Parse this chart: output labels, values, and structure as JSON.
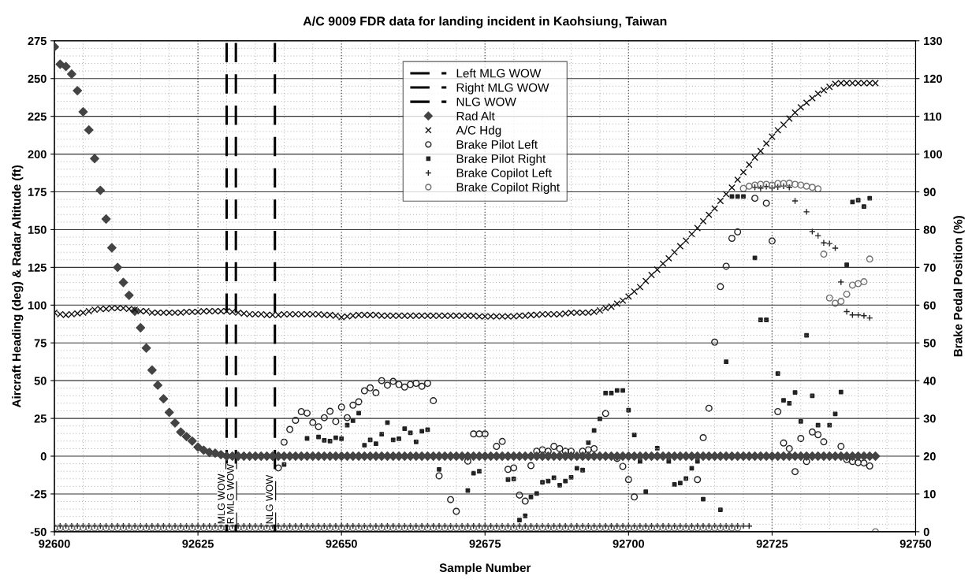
{
  "chart_data": {
    "type": "scatter",
    "title": "A/C 9009 FDR data for landing incident in Kaohsiung, Taiwan",
    "xlabel": "Sample Number",
    "ylabel": "Aircraft Heading (deg) & Radar Altitude (ft)",
    "y2label": "Brake Pedal Position (%)",
    "x": [
      92600,
      92601,
      92602,
      92603,
      92604,
      92605,
      92606,
      92607,
      92608,
      92609,
      92610,
      92611,
      92612,
      92613,
      92614,
      92615,
      92616,
      92617,
      92618,
      92619,
      92620,
      92621,
      92622,
      92623,
      92624,
      92625,
      92626,
      92627,
      92628,
      92629,
      92630,
      92631,
      92632,
      92633,
      92634,
      92635,
      92636,
      92637,
      92638,
      92639,
      92640,
      92641,
      92642,
      92643,
      92644,
      92645,
      92646,
      92647,
      92648,
      92649,
      92650,
      92651,
      92652,
      92653,
      92654,
      92655,
      92656,
      92657,
      92658,
      92659,
      92660,
      92661,
      92662,
      92663,
      92664,
      92665,
      92666,
      92667,
      92668,
      92669,
      92670,
      92671,
      92672,
      92673,
      92674,
      92675,
      92676,
      92677,
      92678,
      92679,
      92680,
      92681,
      92682,
      92683,
      92684,
      92685,
      92686,
      92687,
      92688,
      92689,
      92690,
      92691,
      92692,
      92693,
      92694,
      92695,
      92696,
      92697,
      92698,
      92699,
      92700,
      92701,
      92702,
      92703,
      92704,
      92705,
      92706,
      92707,
      92708,
      92709,
      92710,
      92711,
      92712,
      92713,
      92714,
      92715,
      92716,
      92717,
      92718,
      92719,
      92720,
      92721,
      92722,
      92723,
      92724,
      92725,
      92726,
      92727,
      92728,
      92729,
      92730,
      92731,
      92732,
      92733,
      92734,
      92735,
      92736,
      92737,
      92738,
      92739,
      92740,
      92741,
      92742,
      92743
    ],
    "xlim": [
      92600,
      92750
    ],
    "xticks": [
      92600,
      92625,
      92650,
      92675,
      92700,
      92725,
      92750
    ],
    "ylim": [
      -50,
      275
    ],
    "yticks": [
      -50,
      -25,
      0,
      25,
      50,
      75,
      100,
      125,
      150,
      175,
      200,
      225,
      250,
      275
    ],
    "y2lim": [
      0,
      130
    ],
    "y2ticks": [
      0,
      10,
      20,
      30,
      40,
      50,
      60,
      70,
      80,
      90,
      100,
      110,
      120,
      130
    ],
    "grid": true,
    "legend": "top",
    "annotations": [
      {
        "text": "MLG WOW",
        "x": 92630,
        "y": -45
      },
      {
        "text": "R MLG WOW",
        "x": 92631.6,
        "y": -45
      },
      {
        "text": "NLG WOW",
        "x": 92638.4,
        "y": -45
      }
    ],
    "series": [
      {
        "name": "Left MLG WOW",
        "type": "line",
        "color": "#000000",
        "line_style": "dashed",
        "marker": "none",
        "x": [
          92630,
          92630
        ],
        "values": [
          -50,
          275
        ]
      },
      {
        "name": "Right MLG WOW",
        "type": "line",
        "color": "#000000",
        "line_style": "dashed",
        "marker": "none",
        "x": [
          92631.6,
          92631.6
        ],
        "values": [
          -50,
          275
        ]
      },
      {
        "name": "NLG WOW",
        "type": "line",
        "color": "#000000",
        "line_style": "dashed",
        "marker": "none",
        "x": [
          92638.4,
          92638.4
        ],
        "values": [
          -50,
          275
        ]
      },
      {
        "name": "Rad Alt",
        "color": "#444444",
        "marker": "diamond",
        "values": [
          271,
          259.5,
          258,
          253,
          242,
          228,
          216,
          197,
          176,
          157,
          138,
          125,
          115,
          106.5,
          96,
          85,
          71.6,
          57,
          47,
          38,
          29,
          22,
          16,
          13,
          10,
          6,
          4,
          2.5,
          2,
          1,
          0,
          0,
          0,
          0,
          0,
          0,
          0,
          0,
          0,
          0,
          0,
          0,
          0,
          0,
          0,
          0,
          0,
          0,
          0,
          0,
          0,
          0,
          0,
          0,
          0,
          0,
          0,
          0,
          0,
          0,
          0,
          0,
          0,
          0,
          0,
          0,
          0,
          0,
          0,
          0,
          0,
          0,
          0,
          0,
          0,
          0,
          0,
          0,
          0,
          0,
          0,
          0,
          0,
          0,
          0,
          0,
          0,
          0,
          0,
          0,
          0,
          0,
          0,
          0,
          0,
          0,
          0,
          0,
          0,
          0,
          0,
          0,
          0,
          0,
          0,
          0,
          0,
          0,
          0,
          0,
          0,
          0,
          0,
          0,
          0,
          0,
          0,
          0,
          0,
          0,
          0,
          0,
          0,
          0,
          0,
          0,
          0,
          0,
          0,
          0,
          0,
          0,
          0,
          0,
          0,
          0,
          0,
          0,
          0,
          0,
          0,
          0,
          0,
          0
        ]
      },
      {
        "name": "A/C Hdg",
        "color": "#111111",
        "marker": "cross",
        "values": [
          95,
          94,
          93.5,
          94,
          94.5,
          95,
          96,
          97,
          97.5,
          97.5,
          98,
          98,
          98,
          97.5,
          97,
          96,
          96,
          95,
          95,
          95,
          95,
          95,
          95,
          95.5,
          95.5,
          95.5,
          96,
          96,
          96,
          96,
          96,
          95.5,
          95,
          94.5,
          94,
          94,
          94,
          93.5,
          93.5,
          93.5,
          94,
          94,
          94,
          94,
          94,
          94,
          94,
          93.5,
          93.5,
          93,
          92,
          92.5,
          93,
          93.5,
          93.5,
          93.5,
          93.5,
          93,
          93,
          93,
          93,
          93,
          93,
          93,
          93,
          93,
          93,
          93,
          93,
          93,
          93,
          93,
          93,
          93,
          92.5,
          92.5,
          92.5,
          92.5,
          92.5,
          92.5,
          92.5,
          93,
          93,
          93.5,
          93.5,
          94,
          94,
          94,
          94,
          94.5,
          95,
          95,
          95,
          95,
          95.5,
          96.5,
          98,
          99,
          101,
          103,
          105.7,
          109,
          112,
          116,
          120,
          123.5,
          127.5,
          131,
          135,
          139,
          142.7,
          147,
          151,
          155.5,
          159.8,
          164,
          169,
          173.5,
          177.8,
          183,
          188,
          193,
          197.7,
          202,
          207,
          211.5,
          215.8,
          219.5,
          223.5,
          227.5,
          231,
          234,
          237,
          240,
          242.3,
          244.5,
          246.5,
          247,
          247,
          247,
          247,
          247,
          247,
          247
        ]
      },
      {
        "name": "Brake Pilot Left",
        "axis": "y2",
        "color": "#222222",
        "marker": "circle",
        "x": [
          92639,
          92640,
          92641,
          92642,
          92643,
          92644,
          92645,
          92646,
          92647,
          92648,
          92649,
          92650,
          92651,
          92652,
          92653,
          92654,
          92655,
          92656,
          92657,
          92658,
          92659,
          92660,
          92661,
          92662,
          92663,
          92664,
          92665,
          92666,
          92667,
          92669,
          92670,
          92672,
          92673,
          92674,
          92675,
          92677,
          92678,
          92679,
          92680,
          92681,
          92682,
          92683,
          92684,
          92685,
          92686,
          92687,
          92688,
          92689,
          92690,
          92692,
          92693,
          92694,
          92696,
          92698,
          92699,
          92700,
          92701,
          92712,
          92713,
          92714,
          92715,
          92716,
          92717,
          92718,
          92719,
          92722,
          92724,
          92725,
          92726,
          92727,
          92728,
          92729,
          92730,
          92731,
          92732,
          92733,
          92734,
          92737,
          92738,
          92739,
          92740,
          92741,
          92742
        ],
        "values": [
          16.9,
          23.7,
          27.1,
          29.5,
          31.8,
          31.4,
          28.9,
          27.8,
          30.2,
          31.9,
          29.2,
          33,
          30.2,
          33.5,
          34.4,
          37.3,
          38.1,
          36.8,
          40,
          38.8,
          39.8,
          39,
          38.3,
          39,
          39.3,
          38.5,
          39.3,
          34.7,
          14.8,
          8.5,
          5.4,
          18.7,
          25.9,
          25.9,
          25.9,
          22.6,
          23.9,
          16.5,
          16.9,
          9.7,
          8.1,
          17.5,
          21.3,
          21.7,
          21.3,
          22.6,
          22,
          21.3,
          21.3,
          21.3,
          21.7,
          22,
          31.3,
          19.4,
          17.3,
          13.8,
          9.2,
          13.8,
          24.9,
          32.7,
          50.2,
          64.9,
          70.3,
          77.7,
          79.4,
          88.3,
          87,
          77,
          31.8,
          23.5,
          22,
          15.9,
          24.7,
          18.6,
          26.4,
          25.7,
          23.8,
          22.6,
          19.1,
          18.6,
          18.3,
          18.2,
          17.4
        ]
      },
      {
        "name": "Brake Pilot Right",
        "axis": "y2",
        "color": "#222222",
        "marker": "square",
        "x": [
          92640,
          92644,
          92646,
          92647,
          92648,
          92649,
          92650,
          92651,
          92652,
          92653,
          92654,
          92655,
          92656,
          92657,
          92658,
          92659,
          92660,
          92661,
          92662,
          92663,
          92664,
          92665,
          92667,
          92672,
          92673,
          92674,
          92679,
          92680,
          92681,
          92682,
          92683,
          92684,
          92685,
          92686,
          92687,
          92688,
          92689,
          92690,
          92691,
          92692,
          92693,
          92694,
          92695,
          92696,
          92697,
          92698,
          92699,
          92700,
          92701,
          92702,
          92703,
          92705,
          92707,
          92708,
          92709,
          92710,
          92711,
          92712,
          92713,
          92716,
          92717,
          92718,
          92719,
          92720,
          92722,
          92723,
          92724,
          92726,
          92727,
          92728,
          92729,
          92730,
          92731,
          92732,
          92733,
          92735,
          92736,
          92737,
          92738,
          92739,
          92740,
          92741,
          92742
        ],
        "values": [
          17.8,
          24.7,
          25.1,
          24.2,
          24,
          24.9,
          24.6,
          28.2,
          29.4,
          31.4,
          22.9,
          24.3,
          23.3,
          25.8,
          28.9,
          24.3,
          24.6,
          27.3,
          26.2,
          23.8,
          26.6,
          27,
          16.5,
          10.9,
          15.5,
          16,
          13.8,
          14,
          3.1,
          4.2,
          9.2,
          10.1,
          13.1,
          13.4,
          14.3,
          12.3,
          13.4,
          14.4,
          16.8,
          16.3,
          23.6,
          26.8,
          29.9,
          36.7,
          36.7,
          37.4,
          37.4,
          32.2,
          25.6,
          18.6,
          10.6,
          22.1,
          18.6,
          12.5,
          12.9,
          14.1,
          16.8,
          18.6,
          8.6,
          5.8,
          45,
          88.8,
          88.8,
          88.8,
          72.5,
          56.1,
          56.1,
          41.9,
          34.8,
          34,
          36.9,
          29.2,
          52,
          36,
          28.2,
          28.2,
          31.2,
          37,
          70.7,
          87.3,
          87.8,
          86.1,
          88.3
        ]
      },
      {
        "name": "Brake Copilot Left",
        "axis": "y2",
        "color": "#222222",
        "marker": "plus",
        "values": [
          1.5,
          1.5,
          1.5,
          1.5,
          1.5,
          1.5,
          1.5,
          1.5,
          1.5,
          1.5,
          1.5,
          1.5,
          1.5,
          1.5,
          1.5,
          1.5,
          1.5,
          1.5,
          1.5,
          1.5,
          1.5,
          1.5,
          1.5,
          1.5,
          1.5,
          1.5,
          1.5,
          1.5,
          1.5,
          1.5,
          1.5,
          1.5,
          1.5,
          1.5,
          1.5,
          1.5,
          1.5,
          1.5,
          1.5,
          1.5,
          1.5,
          1.5,
          1.5,
          1.5,
          1.5,
          1.5,
          1.5,
          1.5,
          1.5,
          1.5,
          1.5,
          1.5,
          1.5,
          1.5,
          1.5,
          1.5,
          1.5,
          1.5,
          1.5,
          1.5,
          1.5,
          1.5,
          1.5,
          1.5,
          1.5,
          1.5,
          1.5,
          1.5,
          1.5,
          1.5,
          1.5,
          1.5,
          1.5,
          1.5,
          1.5,
          1.5,
          1.5,
          1.5,
          1.5,
          1.5,
          1.5,
          1.5,
          1.5,
          1.5,
          1.5,
          1.5,
          1.5,
          1.5,
          1.5,
          1.5,
          1.5,
          1.5,
          1.5,
          1.5,
          1.5,
          1.5,
          1.5,
          1.5,
          1.5,
          1.5,
          1.5,
          1.5,
          1.5,
          1.5,
          1.5,
          1.5,
          1.5,
          1.5,
          1.5,
          1.5,
          1.5,
          1.5,
          1.5,
          1.5,
          1.5,
          1.5,
          1.5,
          1.5,
          1.5,
          1.5,
          1.5,
          1.5,
          91.2,
          91,
          91.4,
          91,
          91.3,
          91.5,
          91.2,
          87.6,
          null,
          84.7,
          79.5,
          78.4,
          76.5,
          76.3,
          75.1,
          66.1,
          58.3,
          57.4,
          57.4,
          57.2,
          56.6,
          null
        ]
      },
      {
        "name": "Brake Copilot Right",
        "axis": "y2",
        "color": "#707070",
        "marker": "circle",
        "values": [
          1,
          1,
          1,
          1,
          1,
          1,
          1,
          1,
          1,
          1,
          1,
          1,
          1,
          1,
          1,
          1,
          1,
          1,
          1,
          1,
          1,
          1,
          1,
          1,
          1,
          1,
          1,
          1,
          1,
          1,
          1,
          1,
          1,
          1,
          1,
          1,
          1,
          1,
          1,
          1,
          1,
          1,
          1,
          1,
          1,
          1,
          1,
          1,
          1,
          1,
          1,
          1,
          1,
          1,
          1,
          1,
          1,
          1,
          1,
          1,
          1,
          1,
          1,
          1,
          1,
          1,
          1,
          1,
          1,
          1,
          1,
          1,
          1,
          1,
          1,
          1,
          1,
          1,
          1,
          1,
          1,
          1,
          1,
          1,
          1,
          1,
          1,
          1,
          1,
          1,
          1,
          1,
          1,
          1,
          1,
          1,
          1,
          1,
          1,
          1,
          1,
          1,
          1,
          1,
          1,
          1,
          1,
          1,
          1,
          1,
          1,
          1,
          1,
          1,
          1,
          1,
          1,
          1,
          1,
          1,
          90.9,
          91.5,
          91.8,
          92,
          92,
          91.8,
          92.2,
          92.2,
          92.3,
          92,
          91.8,
          91.5,
          91.2,
          90.8,
          73.5,
          61.9,
          60.5,
          61,
          62.9,
          65.3,
          65.7,
          66.2,
          72.2,
          0
        ]
      }
    ]
  }
}
